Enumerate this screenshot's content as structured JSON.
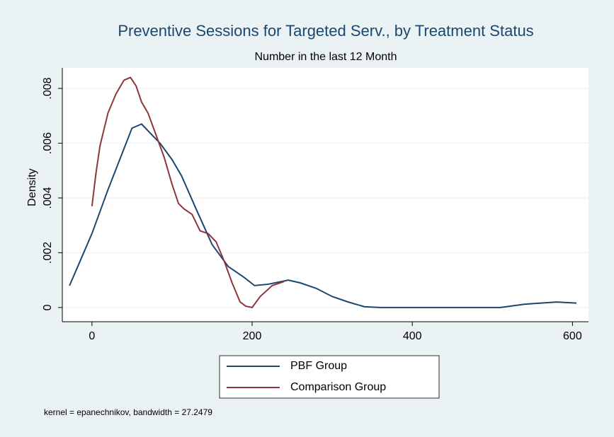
{
  "chart_data": {
    "type": "line",
    "title": "Preventive Sessions for Targeted Serv., by Treatment Status",
    "subtitle": "Number in the last 12 Month",
    "y_label": "Density",
    "note": "kernel = epanechnikov, bandwidth = 27.2479",
    "xlim": [
      -37,
      620
    ],
    "xticks": [
      0,
      200,
      400,
      600
    ],
    "ylim": [
      -0.00052,
      0.00875
    ],
    "yticks": [
      0,
      {
        "value": 0.002,
        "label": ".002"
      },
      {
        "value": 0.004,
        "label": ".004"
      },
      {
        "value": 0.006,
        "label": ".006"
      },
      {
        "value": 0.008,
        "label": ".008"
      }
    ],
    "grid": true,
    "legend": "bottom",
    "series": [
      {
        "name": "PBF Group",
        "color": "#1a476f",
        "x": [
          -28,
          0,
          20,
          40,
          50,
          62,
          75,
          85,
          100,
          112,
          130,
          150,
          170,
          190,
          203,
          220,
          245,
          260,
          280,
          300,
          320,
          340,
          360,
          400,
          450,
          510,
          540,
          580,
          605
        ],
        "values": [
          0.0008,
          0.0027,
          0.0043,
          0.0058,
          0.00655,
          0.0067,
          0.0063,
          0.006,
          0.0054,
          0.0048,
          0.0036,
          0.0023,
          0.0015,
          0.0011,
          0.0008,
          0.00085,
          0.001,
          0.0009,
          0.0007,
          0.0004,
          0.0002,
          3e-05,
          0,
          0,
          0,
          0,
          0.00012,
          0.0002,
          0.00016
        ]
      },
      {
        "name": "Comparison Group",
        "color": "#90353b",
        "x": [
          0,
          5,
          10,
          20,
          30,
          40,
          48,
          55,
          62,
          70,
          80,
          90,
          100,
          108,
          115,
          125,
          135,
          145,
          155,
          165,
          175,
          185,
          192,
          200,
          210,
          225,
          240
        ],
        "values": [
          0.0037,
          0.0049,
          0.0059,
          0.0071,
          0.0078,
          0.0083,
          0.0084,
          0.0081,
          0.0075,
          0.0071,
          0.0063,
          0.0055,
          0.0045,
          0.0038,
          0.0036,
          0.0034,
          0.0028,
          0.0027,
          0.0024,
          0.0017,
          0.0009,
          0.0002,
          5e-05,
          0,
          0.0004,
          0.0008,
          0.00095
        ]
      }
    ]
  }
}
